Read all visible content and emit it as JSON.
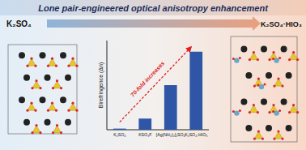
{
  "chart_data": {
    "type": "bar",
    "title": "Lone pair-engineered optical anisotropy enhancement",
    "y_label": "Birefringence (Δn)",
    "categories": [
      "K₂SO₄",
      "KSO₃F",
      "[Ag(NH₃)₂]₂SO₄",
      "K₂SO₄·HIO₃"
    ],
    "values": [
      0.002,
      0.02,
      0.08,
      0.14
    ],
    "color": "#2f56a6",
    "ylim": [
      0,
      0.16
    ],
    "tick_labels": "x",
    "annotations": [
      "70-fold increases"
    ],
    "structure_labels": [
      "K₂SO₄",
      "K₂SO₄·HIO₃"
    ]
  }
}
